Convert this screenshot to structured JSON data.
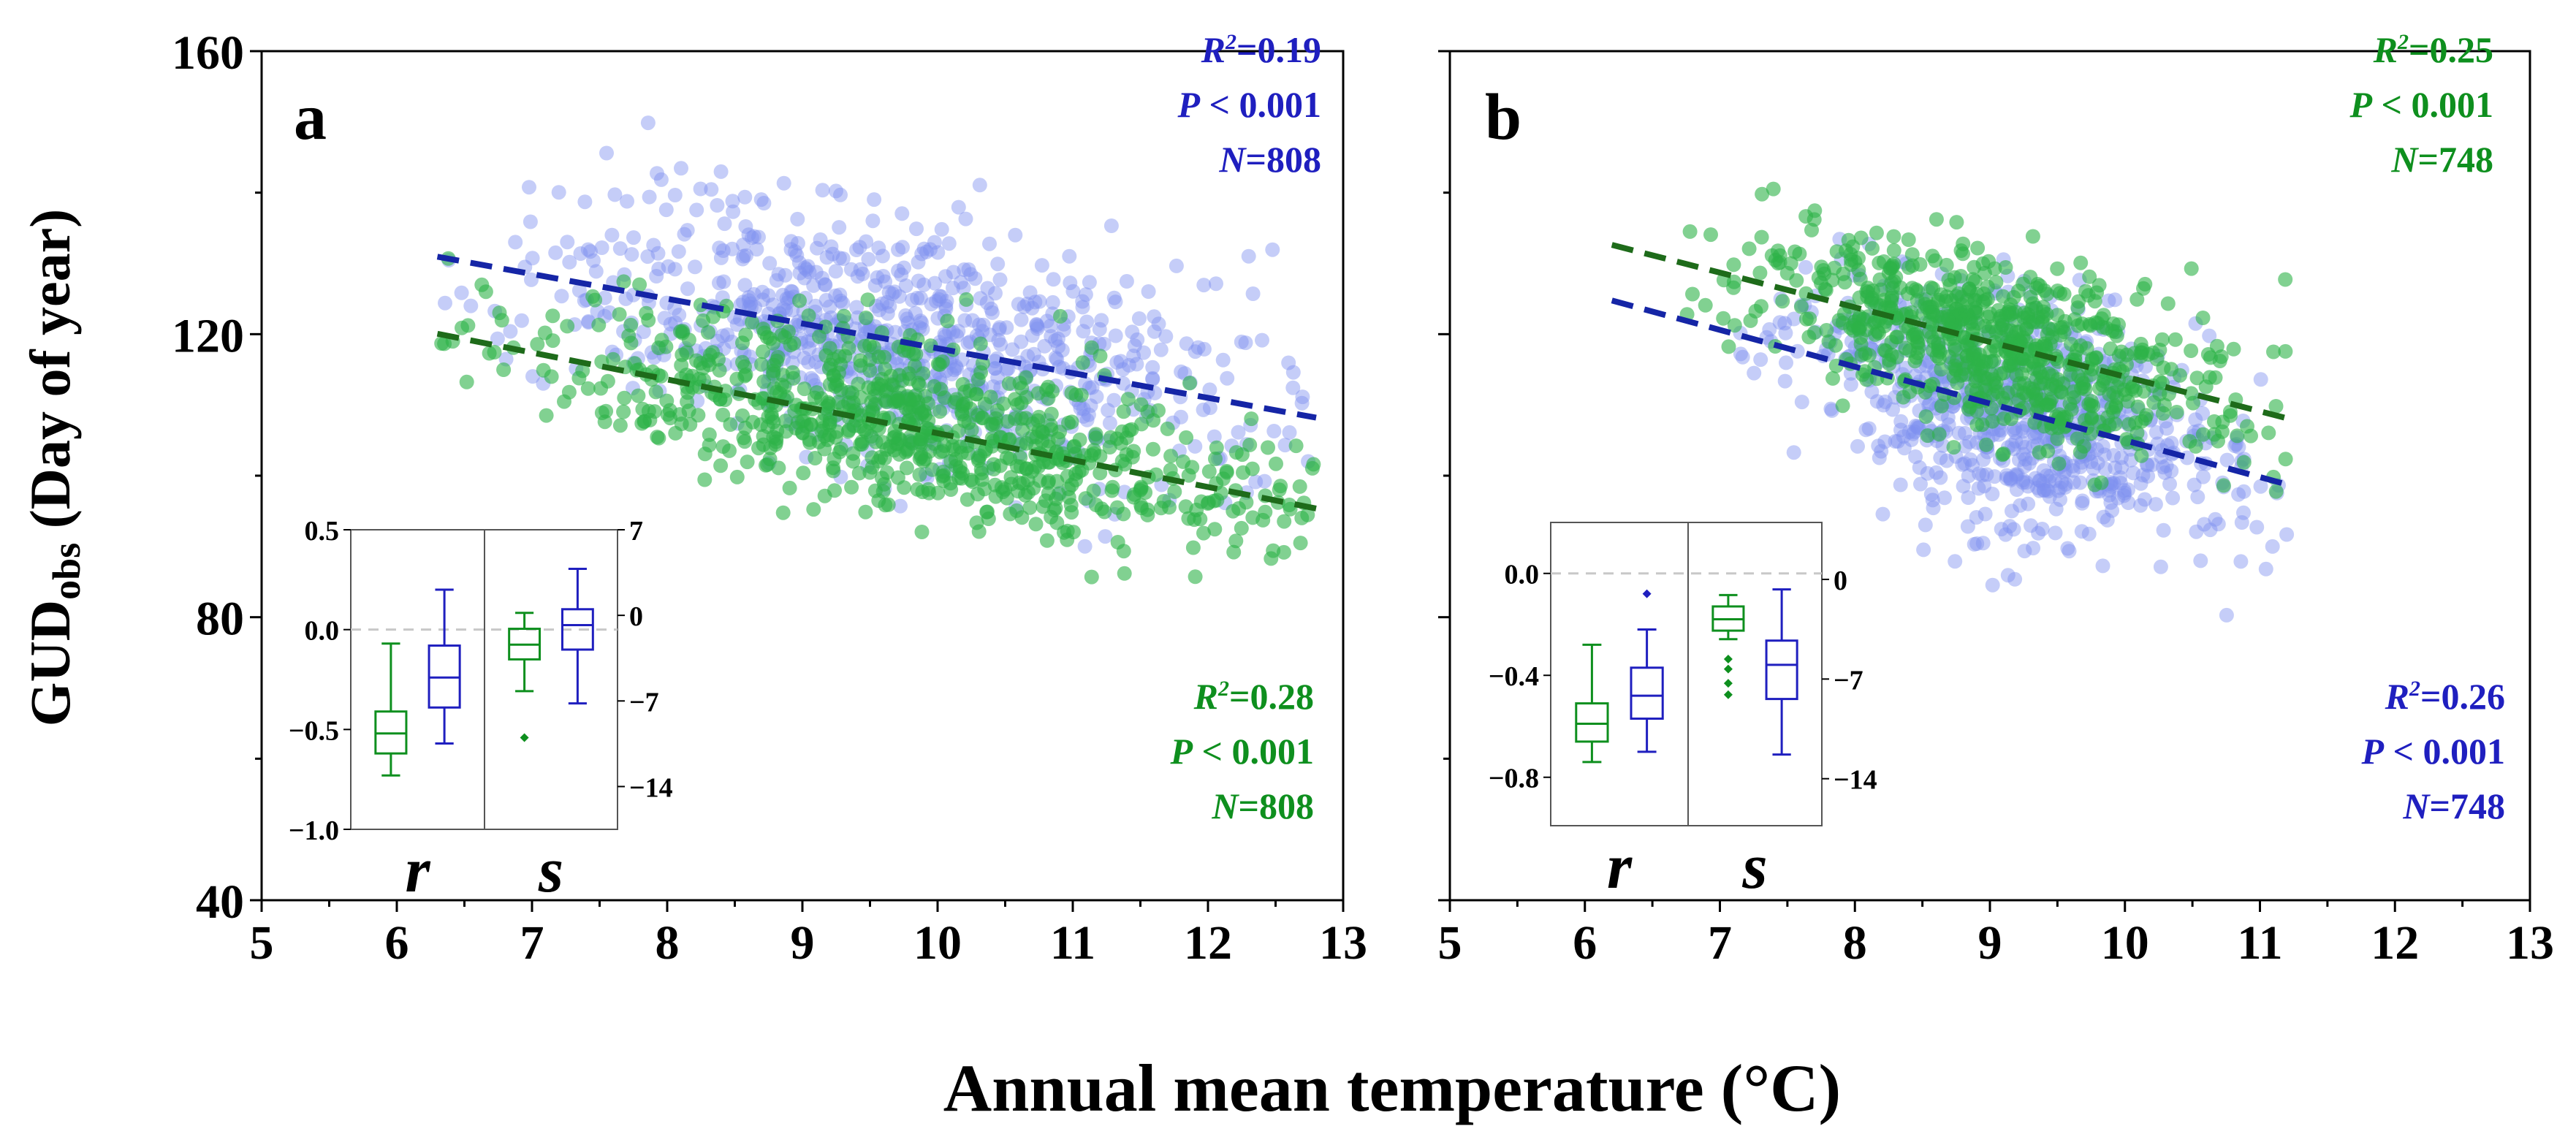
{
  "figure": {
    "y_axis_label_main": "GUD",
    "y_axis_label_sub": "obs",
    "y_axis_label_rest": " (Day of year)",
    "x_axis_label": "Annual mean temperature (°C)"
  },
  "colors": {
    "blue": "#1f1fbf",
    "green": "#0e8f1e",
    "blue_line": "#1525a6",
    "green_line": "#1e6b1a",
    "blue_point": "#7f90ef",
    "green_point": "#2db347",
    "axis": "#000000",
    "zero_line": "#c8c8c8"
  },
  "chart_data": [
    {
      "type": "scatter",
      "panel_label": "a",
      "xlabel": "Annual mean temperature (°C)",
      "ylabel": "GUDobs (Day of year)",
      "xlim": [
        5,
        13
      ],
      "ylim": [
        40,
        160
      ],
      "xticks": [
        "5",
        "6",
        "7",
        "8",
        "9",
        "10",
        "11",
        "12",
        "13"
      ],
      "yticks": [
        "40",
        "80",
        "120",
        "160"
      ],
      "series": [
        {
          "name": "blue",
          "n": 808,
          "x_range": [
            6.3,
            12.8
          ],
          "x_center": 9.7,
          "x_spread": 1.3,
          "fit": {
            "slope": -3.5,
            "intercept": 153.0,
            "x_start": 6.3,
            "x_end": 12.8
          },
          "noise": 8,
          "stats": {
            "r2_label": "R",
            "r2_sup": "2",
            "r2_value": "=0.19",
            "p_text": "P < 0.001",
            "n_letter": "N",
            "n_value": "=808"
          },
          "stats_position": "top-right"
        },
        {
          "name": "green",
          "n": 808,
          "x_range": [
            6.3,
            12.8
          ],
          "x_center": 9.8,
          "x_spread": 1.3,
          "fit": {
            "slope": -3.8,
            "intercept": 144.0,
            "x_start": 6.3,
            "x_end": 12.8
          },
          "noise": 6,
          "stats": {
            "r2_label": "R",
            "r2_sup": "2",
            "r2_value": "=0.28",
            "p_text": "P < 0.001",
            "n_letter": "N",
            "n_value": "=808"
          },
          "stats_position": "bottom-right"
        }
      ],
      "inset": {
        "type": "box",
        "groups": [
          "r",
          "s"
        ],
        "left_axis": {
          "lim": [
            -1.0,
            0.5
          ],
          "ticks": [
            "0.5",
            "0.0",
            "−0.5",
            "−1.0"
          ],
          "tick_values": [
            0.5,
            0.0,
            -0.5,
            -1.0
          ]
        },
        "right_axis": {
          "lim": [
            -17.5,
            7
          ],
          "ticks": [
            "7",
            "0",
            "−7",
            "−14"
          ],
          "tick_values": [
            7,
            0,
            -7,
            -14
          ]
        },
        "boxes": [
          {
            "group": "r",
            "series": "green",
            "min": -0.73,
            "q1": -0.62,
            "median": -0.52,
            "q3": -0.41,
            "max": -0.07,
            "outliers": []
          },
          {
            "group": "r",
            "series": "blue",
            "min": -0.57,
            "q1": -0.39,
            "median": -0.24,
            "q3": -0.08,
            "max": 0.2
          },
          {
            "group": "s",
            "series": "green",
            "min": -6.2,
            "q1": -3.6,
            "median": -2.4,
            "q3": -1.1,
            "max": 0.2,
            "outliers": [
              -10.0
            ]
          },
          {
            "group": "s",
            "series": "blue",
            "min": -7.2,
            "q1": -2.8,
            "median": -0.8,
            "q3": 0.5,
            "max": 3.8,
            "outliers": []
          }
        ]
      }
    },
    {
      "type": "scatter",
      "panel_label": "b",
      "xlabel": "Annual mean temperature (°C)",
      "ylabel": "GUDobs (Day of year)",
      "xlim": [
        5,
        13
      ],
      "ylim": [
        40,
        160
      ],
      "xticks": [
        "5",
        "6",
        "7",
        "8",
        "9",
        "10",
        "11",
        "12",
        "13"
      ],
      "yticks": [
        "40",
        "80",
        "120",
        "160"
      ],
      "series": [
        {
          "name": "blue",
          "n": 748,
          "x_range": [
            6.2,
            11.2
          ],
          "x_center": 9.2,
          "x_spread": 0.8,
          "fit": {
            "slope": -5.2,
            "intercept": 157.0,
            "x_start": 6.2,
            "x_end": 11.2
          },
          "noise": 8,
          "stats": {
            "r2_label": "R",
            "r2_sup": "2",
            "r2_value": "=0.26",
            "p_text": "P < 0.001",
            "n_letter": "N",
            "n_value": "=748"
          },
          "stats_position": "bottom-right"
        },
        {
          "name": "green",
          "n": 748,
          "x_range": [
            6.2,
            11.2
          ],
          "x_center": 9.0,
          "x_spread": 0.8,
          "fit": {
            "slope": -4.9,
            "intercept": 163.0,
            "x_start": 6.2,
            "x_end": 11.2
          },
          "noise": 6,
          "stats": {
            "r2_label": "R",
            "r2_sup": "2",
            "r2_value": "=0.25",
            "p_text": "P < 0.001",
            "n_letter": "N",
            "n_value": "=748"
          },
          "stats_position": "top-right"
        }
      ],
      "inset": {
        "type": "box",
        "groups": [
          "r",
          "s"
        ],
        "left_axis": {
          "lim": [
            -0.99,
            0.2
          ],
          "ticks": [
            "0.0",
            "−0.4",
            "−0.8"
          ],
          "tick_values": [
            0.0,
            -0.4,
            -0.8
          ]
        },
        "right_axis": {
          "lim": [
            -17.3,
            4.0
          ],
          "ticks": [
            "0",
            "−7",
            "−14"
          ],
          "tick_values": [
            0,
            -7,
            -14
          ]
        },
        "boxes": [
          {
            "group": "r",
            "series": "green",
            "min": -0.74,
            "q1": -0.66,
            "median": -0.59,
            "q3": -0.51,
            "max": -0.28,
            "outliers": []
          },
          {
            "group": "r",
            "series": "blue",
            "min": -0.7,
            "q1": -0.57,
            "median": -0.48,
            "q3": -0.37,
            "max": -0.22,
            "outliers": [
              -0.08
            ]
          },
          {
            "group": "s",
            "series": "green",
            "min": -4.2,
            "q1": -3.6,
            "median": -2.8,
            "q3": -1.9,
            "max": -1.1,
            "outliers": [
              -5.6,
              -6.3,
              -7.3,
              -8.1
            ]
          },
          {
            "group": "s",
            "series": "blue",
            "min": -12.3,
            "q1": -8.4,
            "median": -6.0,
            "q3": -4.3,
            "max": -0.7,
            "outliers": []
          }
        ]
      }
    }
  ]
}
